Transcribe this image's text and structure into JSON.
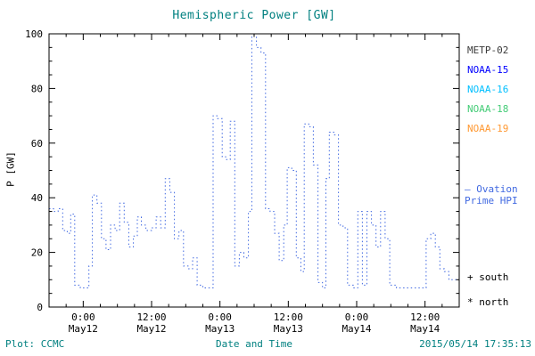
{
  "chart_data": {
    "type": "line",
    "style": "dotted-step",
    "title": "Hemispheric Power [GW]",
    "xlabel": "Date and Time",
    "ylabel": "P [GW]",
    "ylim": [
      0,
      100
    ],
    "y_ticks": [
      0,
      20,
      40,
      60,
      80,
      100
    ],
    "x_range_hours": [
      0,
      72
    ],
    "minor_tick_hours": 3,
    "x_ticks": [
      {
        "hour": 6,
        "time": "0:00",
        "date": "May12"
      },
      {
        "hour": 18,
        "time": "12:00",
        "date": "May12"
      },
      {
        "hour": 30,
        "time": "0:00",
        "date": "May13"
      },
      {
        "hour": 42,
        "time": "12:00",
        "date": "May13"
      },
      {
        "hour": 54,
        "time": "0:00",
        "date": "May14"
      },
      {
        "hour": 66,
        "time": "12:00",
        "date": "May14"
      }
    ],
    "series": [
      {
        "name": "Ovation Prime HPI",
        "color": "#4169e1",
        "points": [
          [
            0,
            36
          ],
          [
            0.8,
            35
          ],
          [
            1.6,
            36
          ],
          [
            2.4,
            28
          ],
          [
            3.2,
            27
          ],
          [
            3.8,
            34
          ],
          [
            4.5,
            8
          ],
          [
            5.5,
            7
          ],
          [
            6.5,
            7
          ],
          [
            7,
            15
          ],
          [
            7.6,
            41
          ],
          [
            8.4,
            38
          ],
          [
            9.2,
            25
          ],
          [
            10,
            21
          ],
          [
            10.8,
            30
          ],
          [
            11.6,
            28
          ],
          [
            12.4,
            38
          ],
          [
            13.2,
            31
          ],
          [
            14,
            22
          ],
          [
            14.8,
            26
          ],
          [
            15.5,
            33
          ],
          [
            16.2,
            30
          ],
          [
            17,
            28
          ],
          [
            18,
            29
          ],
          [
            18.8,
            33
          ],
          [
            19.6,
            29
          ],
          [
            20.4,
            47
          ],
          [
            21.2,
            42
          ],
          [
            22,
            25
          ],
          [
            22.8,
            28
          ],
          [
            23.6,
            15
          ],
          [
            24.4,
            14
          ],
          [
            25.2,
            18
          ],
          [
            26,
            8
          ],
          [
            27,
            7
          ],
          [
            28,
            7
          ],
          [
            28.8,
            70
          ],
          [
            29.6,
            69
          ],
          [
            30.4,
            55
          ],
          [
            31,
            54
          ],
          [
            31.8,
            68
          ],
          [
            32.6,
            15
          ],
          [
            33.4,
            20
          ],
          [
            34.2,
            18
          ],
          [
            35,
            35
          ],
          [
            35.6,
            100
          ],
          [
            36.4,
            95
          ],
          [
            37.2,
            93
          ],
          [
            38,
            36
          ],
          [
            38.8,
            35
          ],
          [
            39.6,
            27
          ],
          [
            40.4,
            17
          ],
          [
            41.2,
            30
          ],
          [
            41.8,
            51
          ],
          [
            42.6,
            50
          ],
          [
            43.4,
            18
          ],
          [
            44.2,
            13
          ],
          [
            44.8,
            67
          ],
          [
            45.6,
            66
          ],
          [
            46.4,
            52
          ],
          [
            47.2,
            9
          ],
          [
            48,
            7
          ],
          [
            48.6,
            47
          ],
          [
            49.2,
            64
          ],
          [
            50,
            63
          ],
          [
            50.8,
            30
          ],
          [
            51.6,
            29
          ],
          [
            52.4,
            8
          ],
          [
            53.4,
            7
          ],
          [
            54.2,
            35
          ],
          [
            55,
            8
          ],
          [
            55.8,
            35
          ],
          [
            56.6,
            30
          ],
          [
            57.4,
            22
          ],
          [
            58.2,
            35
          ],
          [
            59,
            25
          ],
          [
            59.8,
            8
          ],
          [
            61,
            7
          ],
          [
            62.5,
            7
          ],
          [
            64,
            7
          ],
          [
            65.5,
            7
          ],
          [
            66.2,
            25
          ],
          [
            67,
            27
          ],
          [
            67.8,
            22
          ],
          [
            68.6,
            14
          ],
          [
            69.4,
            13
          ],
          [
            70.2,
            10
          ],
          [
            71,
            10
          ],
          [
            72,
            8
          ]
        ]
      }
    ]
  },
  "legend": {
    "satellites": [
      {
        "label": "METP-02",
        "color": "#3a3a3a"
      },
      {
        "label": "NOAA-15",
        "color": "#0000ff"
      },
      {
        "label": "NOAA-16",
        "color": "#00bfff"
      },
      {
        "label": "NOAA-18",
        "color": "#44cc77"
      },
      {
        "label": "NOAA-19",
        "color": "#ff9933"
      }
    ],
    "ovation_line1": "– Ovation",
    "ovation_line2": "Prime HPI",
    "ovation_color": "#4169e1",
    "south_marker": "+ south",
    "north_marker": "* north"
  },
  "footer": {
    "left": "Plot: CCMC",
    "right": "2015/05/14 17:35:13"
  },
  "colors": {
    "title": "#008080",
    "axis": "#000000",
    "line": "#4169e1"
  }
}
